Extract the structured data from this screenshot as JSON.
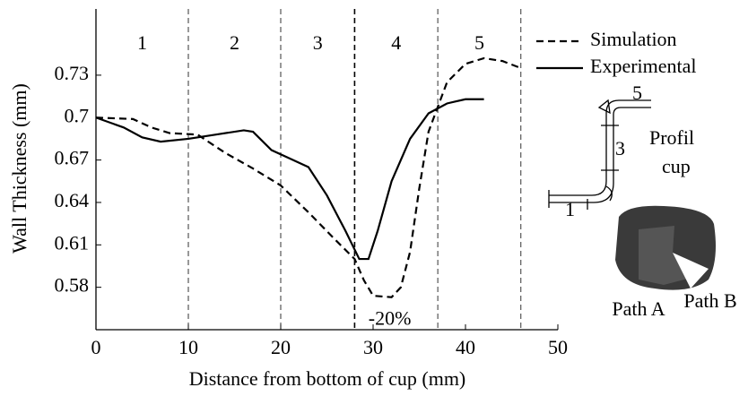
{
  "chart_data": {
    "type": "line",
    "x_label": "Distance from bottom of cup (mm)",
    "y_label": "Wall Thickness (mm)",
    "xlim": [
      0,
      50
    ],
    "xticks": [
      0,
      10,
      20,
      30,
      40,
      50
    ],
    "ylim": [
      0.55,
      0.78
    ],
    "yticks": [
      0.58,
      0.61,
      0.64,
      0.67,
      0.7,
      0.73
    ],
    "legend": "top-right",
    "region_bounds": [
      10,
      20,
      28,
      37,
      46
    ],
    "region_labels": [
      "1",
      "2",
      "3",
      "4",
      "5"
    ],
    "annotation": "-20%",
    "series": [
      {
        "name": "Simulation",
        "color": "#000000",
        "dash": true,
        "x": [
          0,
          4,
          6,
          8,
          11,
          14,
          17,
          20,
          23,
          26,
          28,
          29,
          30,
          32,
          33,
          34,
          35,
          36,
          38,
          40,
          42,
          44,
          46
        ],
        "values": [
          0.7,
          0.699,
          0.693,
          0.689,
          0.688,
          0.675,
          0.664,
          0.652,
          0.633,
          0.613,
          0.6,
          0.585,
          0.574,
          0.573,
          0.58,
          0.605,
          0.65,
          0.69,
          0.725,
          0.738,
          0.742,
          0.74,
          0.735
        ]
      },
      {
        "name": "Experimental",
        "color": "#000000",
        "dash": false,
        "x": [
          0,
          3,
          5,
          7,
          10,
          13,
          16,
          17,
          19,
          21,
          23,
          25,
          27,
          28.5,
          29.5,
          30.5,
          32,
          34,
          36,
          38,
          40,
          42
        ],
        "values": [
          0.7,
          0.693,
          0.686,
          0.683,
          0.685,
          0.688,
          0.691,
          0.69,
          0.677,
          0.671,
          0.665,
          0.645,
          0.62,
          0.6,
          0.6,
          0.62,
          0.655,
          0.685,
          0.703,
          0.71,
          0.713,
          0.713
        ]
      }
    ],
    "profile": {
      "section_labels": [
        "5",
        "3",
        "1"
      ],
      "title": [
        "Profil",
        "cup"
      ]
    },
    "photo": {
      "labels": [
        "Path A",
        "Path B"
      ]
    }
  }
}
